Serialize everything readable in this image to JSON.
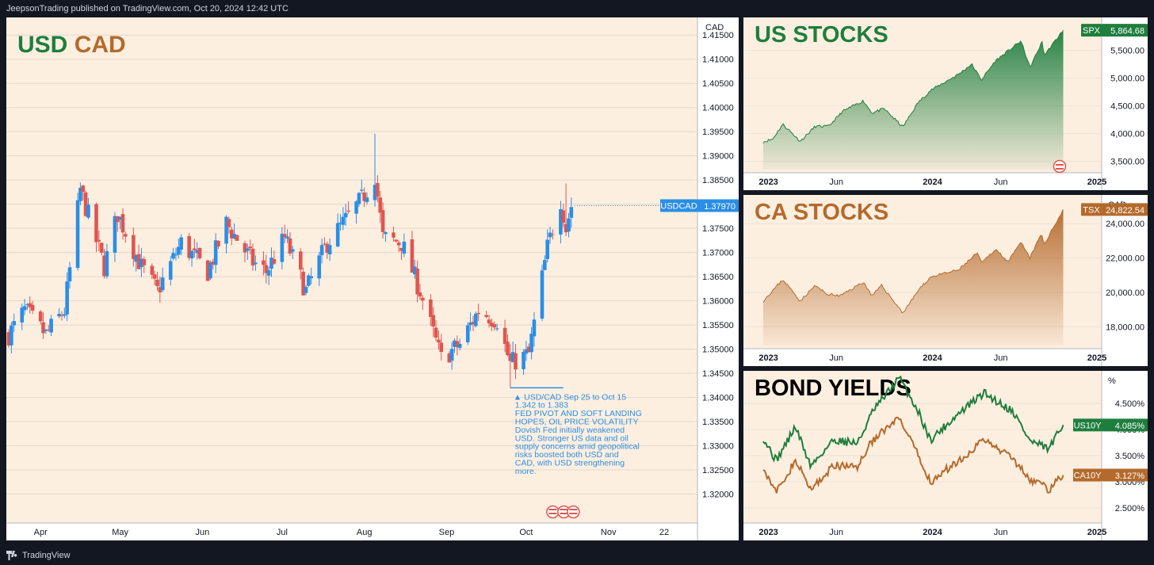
{
  "header": {
    "publisher": "JeepsonTrading published on TradingView.com, Oct 20, 2024 12:42 UTC"
  },
  "footer": {
    "brand": "TradingView"
  },
  "colors": {
    "bg": "#131722",
    "panel_bg": "#fdefe0",
    "green": "#1e7e3e",
    "orange": "#b46a2c",
    "bull": "#2a8ee6",
    "bear": "#e0554f",
    "annotation": "#2a8ee6"
  },
  "chart_data": [
    {
      "type": "candlestick",
      "title": "USD CAD",
      "title_parts": [
        "USD",
        "CAD"
      ],
      "currency": "CAD",
      "symbol_label": "USDCAD",
      "last_value": "1.37970",
      "x_tick_labels": [
        "Apr",
        "May",
        "Jun",
        "Jul",
        "Aug",
        "Sep",
        "Oct",
        "Nov",
        "22"
      ],
      "y_tick_labels": [
        "1.41500",
        "1.41000",
        "1.40500",
        "1.40000",
        "1.39500",
        "1.39000",
        "1.38500",
        "1.38000",
        "1.37500",
        "1.37000",
        "1.36500",
        "1.36000",
        "1.35500",
        "1.35000",
        "1.34500",
        "1.34000",
        "1.33500",
        "1.33000",
        "1.32500",
        "1.32000"
      ],
      "ylim": [
        1.3145,
        1.4175
      ],
      "anchors": [
        [
          "2024-03-20",
          1.353
        ],
        [
          "2024-03-26",
          1.358
        ],
        [
          "2024-04-03",
          1.353
        ],
        [
          "2024-04-10",
          1.358
        ],
        [
          "2024-04-16",
          1.383
        ],
        [
          "2024-04-25",
          1.367
        ],
        [
          "2024-04-30",
          1.378
        ],
        [
          "2024-05-09",
          1.367
        ],
        [
          "2024-05-15",
          1.362
        ],
        [
          "2024-05-24",
          1.372
        ],
        [
          "2024-06-03",
          1.366
        ],
        [
          "2024-06-10",
          1.376
        ],
        [
          "2024-06-20",
          1.368
        ],
        [
          "2024-06-25",
          1.366
        ],
        [
          "2024-07-02",
          1.373
        ],
        [
          "2024-07-10",
          1.362
        ],
        [
          "2024-07-18",
          1.372
        ],
        [
          "2024-07-24",
          1.376
        ],
        [
          "2024-07-31",
          1.381
        ],
        [
          "2024-08-05",
          1.386
        ],
        [
          "2024-08-08",
          1.373
        ],
        [
          "2024-08-15",
          1.372
        ],
        [
          "2024-08-22",
          1.362
        ],
        [
          "2024-08-30",
          1.348
        ],
        [
          "2024-09-06",
          1.351
        ],
        [
          "2024-09-13",
          1.358
        ],
        [
          "2024-09-20",
          1.356
        ],
        [
          "2024-09-25",
          1.347
        ],
        [
          "2024-10-02",
          1.349
        ],
        [
          "2024-10-09",
          1.371
        ],
        [
          "2024-10-14",
          1.381
        ],
        [
          "2024-10-16",
          1.375
        ],
        [
          "2024-10-18",
          1.3797
        ]
      ],
      "wick_highs": [
        [
          "2024-04-16",
          1.3845
        ],
        [
          "2024-08-05",
          1.3946
        ],
        [
          "2024-10-16",
          1.3843
        ]
      ],
      "wick_lows": [
        [
          "2024-09-25",
          1.342
        ]
      ],
      "annotation": {
        "label": "▲ USD/CAD Sep 25 to Oct 15",
        "range": "1.342 to 1.383",
        "headline_lines": [
          "FED PIVOT AND SOFT LANDING",
          "HOPES, OIL PRICE VOLATILITY"
        ],
        "body_lines": [
          "Dovish Fed initially weakened",
          "USD. Stronger US data and oil",
          "supply concerns amid geopolitical",
          "risks boosted both USD and",
          "CAD, with USD strengthening",
          "more."
        ]
      }
    },
    {
      "type": "area",
      "title": "US STOCKS",
      "currency": "USD",
      "symbol_label": "SPX",
      "last_value": "5,864.68",
      "x_tick_labels": [
        "2023",
        "Jun",
        "2024",
        "Jun",
        "2025"
      ],
      "y_tick_labels": [
        "5,500.00",
        "5,000.00",
        "4,500.00",
        "4,000.00",
        "3,500.00"
      ],
      "ylim": [
        3380,
        5980
      ],
      "points": [
        [
          "2022-12-20",
          3850
        ],
        [
          "2023-01-10",
          3900
        ],
        [
          "2023-02-02",
          4170
        ],
        [
          "2023-03-13",
          3860
        ],
        [
          "2023-04-15",
          4130
        ],
        [
          "2023-05-15",
          4130
        ],
        [
          "2023-06-15",
          4400
        ],
        [
          "2023-07-31",
          4590
        ],
        [
          "2023-08-20",
          4370
        ],
        [
          "2023-09-15",
          4450
        ],
        [
          "2023-10-27",
          4120
        ],
        [
          "2023-11-30",
          4560
        ],
        [
          "2023-12-28",
          4780
        ],
        [
          "2024-02-28",
          5070
        ],
        [
          "2024-03-28",
          5250
        ],
        [
          "2024-04-19",
          4970
        ],
        [
          "2024-05-20",
          5310
        ],
        [
          "2024-07-16",
          5670
        ],
        [
          "2024-08-05",
          5190
        ],
        [
          "2024-09-01",
          5650
        ],
        [
          "2024-09-06",
          5410
        ],
        [
          "2024-10-18",
          5864
        ]
      ]
    },
    {
      "type": "area",
      "title": "CA STOCKS",
      "currency": "CAD",
      "symbol_label": "TSX",
      "last_value": "24,822.54",
      "x_tick_labels": [
        "2023",
        "Jun",
        "2024",
        "Jun",
        "2025"
      ],
      "y_tick_labels": [
        "24,000.00",
        "22,000.00",
        "20,000.00",
        "18,000.00"
      ],
      "ylim": [
        17000,
        25300
      ],
      "points": [
        [
          "2022-12-20",
          19500
        ],
        [
          "2023-02-02",
          20750
        ],
        [
          "2023-03-13",
          19500
        ],
        [
          "2023-04-15",
          20400
        ],
        [
          "2023-05-10",
          19900
        ],
        [
          "2023-06-10",
          19800
        ],
        [
          "2023-07-31",
          20600
        ],
        [
          "2023-08-20",
          19800
        ],
        [
          "2023-09-10",
          20400
        ],
        [
          "2023-10-27",
          18800
        ],
        [
          "2023-11-30",
          20100
        ],
        [
          "2023-12-28",
          20900
        ],
        [
          "2024-02-28",
          21300
        ],
        [
          "2024-04-10",
          22300
        ],
        [
          "2024-04-19",
          21700
        ],
        [
          "2024-05-20",
          22500
        ],
        [
          "2024-06-18",
          21800
        ],
        [
          "2024-07-16",
          22900
        ],
        [
          "2024-08-05",
          22000
        ],
        [
          "2024-08-30",
          23400
        ],
        [
          "2024-09-06",
          22800
        ],
        [
          "2024-10-18",
          24822
        ]
      ]
    },
    {
      "type": "line",
      "title": "BOND YIELDS",
      "currency": "%",
      "x_tick_labels": [
        "2023",
        "Jun",
        "2024",
        "Jun",
        "2025"
      ],
      "y_tick_labels": [
        "4.500%",
        "4.000%",
        "3.500%",
        "3.000%",
        "2.500%"
      ],
      "ylim": [
        2.3,
        5.0
      ],
      "series": [
        {
          "name": "US10Y",
          "last_value": "4.085%",
          "points": [
            [
              "2022-12-20",
              3.85
            ],
            [
              "2023-01-18",
              3.4
            ],
            [
              "2023-03-02",
              4.05
            ],
            [
              "2023-04-05",
              3.3
            ],
            [
              "2023-05-26",
              3.8
            ],
            [
              "2023-07-19",
              3.74
            ],
            [
              "2023-08-21",
              4.34
            ],
            [
              "2023-10-19",
              4.99
            ],
            [
              "2023-11-30",
              4.35
            ],
            [
              "2023-12-27",
              3.8
            ],
            [
              "2024-02-28",
              4.3
            ],
            [
              "2024-04-25",
              4.7
            ],
            [
              "2024-05-31",
              4.5
            ],
            [
              "2024-06-28",
              4.35
            ],
            [
              "2024-08-05",
              3.78
            ],
            [
              "2024-09-16",
              3.62
            ],
            [
              "2024-10-18",
              4.085
            ]
          ]
        },
        {
          "name": "CA10Y",
          "last_value": "3.127%",
          "points": [
            [
              "2022-12-20",
              3.3
            ],
            [
              "2023-01-18",
              2.78
            ],
            [
              "2023-03-02",
              3.4
            ],
            [
              "2023-04-05",
              2.85
            ],
            [
              "2023-05-26",
              3.3
            ],
            [
              "2023-07-19",
              3.3
            ],
            [
              "2023-08-21",
              3.8
            ],
            [
              "2023-10-19",
              4.2
            ],
            [
              "2023-11-30",
              3.5
            ],
            [
              "2023-12-27",
              3.0
            ],
            [
              "2024-02-28",
              3.4
            ],
            [
              "2024-04-25",
              3.8
            ],
            [
              "2024-05-31",
              3.6
            ],
            [
              "2024-06-28",
              3.45
            ],
            [
              "2024-08-05",
              3.05
            ],
            [
              "2024-09-16",
              2.85
            ],
            [
              "2024-10-18",
              3.127
            ]
          ]
        }
      ]
    }
  ]
}
